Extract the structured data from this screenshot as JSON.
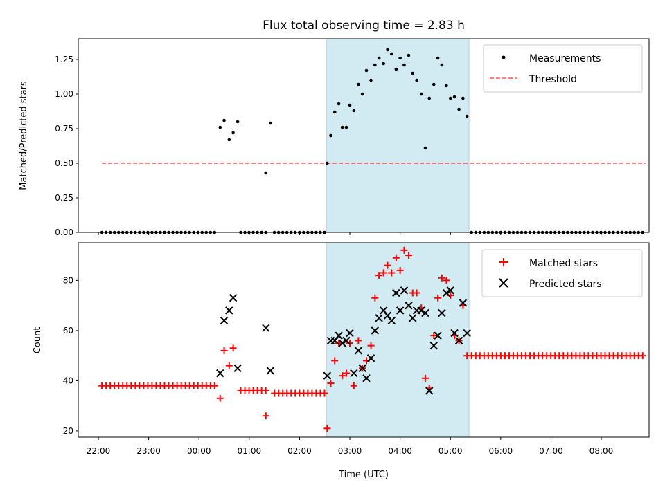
{
  "chart_data": {
    "type": "scatter",
    "title": "Flux total observing time = 2.83 h",
    "xlabel": "Time (UTC)",
    "x_tick_labels": [
      "22:00",
      "23:00",
      "00:00",
      "01:00",
      "02:00",
      "03:00",
      "04:00",
      "05:00",
      "06:00",
      "07:00",
      "08:00"
    ],
    "x_range_hours": [
      -0.4,
      10.95
    ],
    "observing_window_hours": [
      4.54,
      7.37
    ],
    "colors": {
      "shade": "#add8e6",
      "threshold": "#ff0000",
      "matched": "#ff0000",
      "predicted": "#000000",
      "measure": "#000000"
    },
    "top": {
      "ylabel": "Matched/Predicted stars",
      "ylim": [
        0,
        1.4
      ],
      "yticks": [
        "0.00",
        "0.25",
        "0.50",
        "0.75",
        "1.00",
        "1.25"
      ],
      "threshold": {
        "value": 0.5,
        "x_start": 0.07,
        "x_end": 10.88
      },
      "legend": [
        "Measurements",
        "Threshold"
      ],
      "series": [
        {
          "name": "zeros_night",
          "x_start": 0.07,
          "x_end": 2.33,
          "step": 0.083,
          "value": 0
        },
        {
          "name": "zeros_mid",
          "x_start": 2.83,
          "x_end": 3.33,
          "step": 0.083,
          "value": 0
        },
        {
          "name": "zeros_pre",
          "x_start": 3.5,
          "x_end": 4.5,
          "step": 0.083,
          "value": 0
        },
        {
          "name": "zeros_late",
          "x_start": 7.42,
          "x_end": 10.88,
          "step": 0.083,
          "value": 0
        }
      ],
      "points": [
        [
          2.42,
          0.76
        ],
        [
          2.5,
          0.81
        ],
        [
          2.6,
          0.67
        ],
        [
          2.68,
          0.72
        ],
        [
          2.77,
          0.8
        ],
        [
          3.33,
          0.43
        ],
        [
          3.42,
          0.79
        ],
        [
          4.55,
          0.5
        ],
        [
          4.62,
          0.7
        ],
        [
          4.7,
          0.87
        ],
        [
          4.78,
          0.93
        ],
        [
          4.85,
          0.76
        ],
        [
          4.93,
          0.76
        ],
        [
          5.0,
          0.92
        ],
        [
          5.08,
          0.88
        ],
        [
          5.17,
          1.07
        ],
        [
          5.25,
          1.0
        ],
        [
          5.33,
          1.17
        ],
        [
          5.42,
          1.1
        ],
        [
          5.5,
          1.21
        ],
        [
          5.58,
          1.26
        ],
        [
          5.67,
          1.22
        ],
        [
          5.75,
          1.32
        ],
        [
          5.83,
          1.29
        ],
        [
          5.92,
          1.18
        ],
        [
          6.0,
          1.26
        ],
        [
          6.08,
          1.21
        ],
        [
          6.17,
          1.28
        ],
        [
          6.25,
          1.15
        ],
        [
          6.33,
          1.1
        ],
        [
          6.42,
          1.0
        ],
        [
          6.5,
          0.61
        ],
        [
          6.58,
          0.97
        ],
        [
          6.67,
          1.07
        ],
        [
          6.75,
          1.26
        ],
        [
          6.83,
          1.21
        ],
        [
          6.92,
          1.06
        ],
        [
          7.0,
          0.97
        ],
        [
          7.08,
          0.98
        ],
        [
          7.17,
          0.89
        ],
        [
          7.25,
          0.97
        ],
        [
          7.33,
          0.84
        ]
      ]
    },
    "bottom": {
      "ylabel": "Count",
      "ylim": [
        17.5,
        95
      ],
      "yticks": [
        "20",
        "40",
        "60",
        "80"
      ],
      "legend": [
        "Matched stars",
        "Predicted stars"
      ],
      "matched_const": [
        {
          "x_start": 0.07,
          "x_end": 2.33,
          "step": 0.083,
          "value": 38
        },
        {
          "x_start": 2.83,
          "x_end": 3.33,
          "step": 0.083,
          "value": 36
        },
        {
          "x_start": 3.5,
          "x_end": 4.5,
          "step": 0.083,
          "value": 35
        },
        {
          "x_start": 7.42,
          "x_end": 10.88,
          "step": 0.083,
          "value": 50
        }
      ],
      "matched_points": [
        [
          2.42,
          33
        ],
        [
          2.5,
          52
        ],
        [
          2.6,
          46
        ],
        [
          2.68,
          53
        ],
        [
          3.33,
          26
        ],
        [
          4.55,
          21
        ],
        [
          4.62,
          39
        ],
        [
          4.7,
          48
        ],
        [
          4.78,
          55
        ],
        [
          4.85,
          42
        ],
        [
          4.93,
          43
        ],
        [
          5.0,
          55
        ],
        [
          5.08,
          38
        ],
        [
          5.17,
          56
        ],
        [
          5.25,
          45
        ],
        [
          5.33,
          48
        ],
        [
          5.42,
          54
        ],
        [
          5.5,
          73
        ],
        [
          5.58,
          82
        ],
        [
          5.67,
          83
        ],
        [
          5.75,
          86
        ],
        [
          5.83,
          83
        ],
        [
          5.92,
          89
        ],
        [
          6.0,
          84
        ],
        [
          6.08,
          92
        ],
        [
          6.17,
          90
        ],
        [
          6.25,
          75
        ],
        [
          6.33,
          75
        ],
        [
          6.42,
          69
        ],
        [
          6.5,
          41
        ],
        [
          6.58,
          37
        ],
        [
          6.67,
          58
        ],
        [
          6.75,
          73
        ],
        [
          6.83,
          81
        ],
        [
          6.92,
          80
        ],
        [
          7.0,
          74
        ],
        [
          7.08,
          58
        ],
        [
          7.17,
          56
        ],
        [
          7.25,
          70
        ],
        [
          7.33,
          50
        ]
      ],
      "predicted_points": [
        [
          2.42,
          43
        ],
        [
          2.5,
          64
        ],
        [
          2.6,
          68
        ],
        [
          2.68,
          73
        ],
        [
          2.77,
          45
        ],
        [
          3.33,
          61
        ],
        [
          3.42,
          44
        ],
        [
          4.55,
          42
        ],
        [
          4.62,
          56
        ],
        [
          4.7,
          56
        ],
        [
          4.78,
          58
        ],
        [
          4.85,
          55
        ],
        [
          4.93,
          56
        ],
        [
          5.0,
          59
        ],
        [
          5.08,
          43
        ],
        [
          5.17,
          52
        ],
        [
          5.25,
          45
        ],
        [
          5.33,
          41
        ],
        [
          5.42,
          49
        ],
        [
          5.5,
          60
        ],
        [
          5.58,
          65
        ],
        [
          5.67,
          68
        ],
        [
          5.75,
          66
        ],
        [
          5.83,
          64
        ],
        [
          5.92,
          75
        ],
        [
          6.0,
          68
        ],
        [
          6.08,
          76
        ],
        [
          6.17,
          70
        ],
        [
          6.25,
          65
        ],
        [
          6.33,
          68
        ],
        [
          6.42,
          68
        ],
        [
          6.5,
          67
        ],
        [
          6.58,
          36
        ],
        [
          6.67,
          54
        ],
        [
          6.75,
          58
        ],
        [
          6.83,
          67
        ],
        [
          6.92,
          75
        ],
        [
          7.0,
          76
        ],
        [
          7.08,
          59
        ],
        [
          7.17,
          56
        ],
        [
          7.25,
          71
        ],
        [
          7.33,
          59
        ]
      ]
    }
  }
}
